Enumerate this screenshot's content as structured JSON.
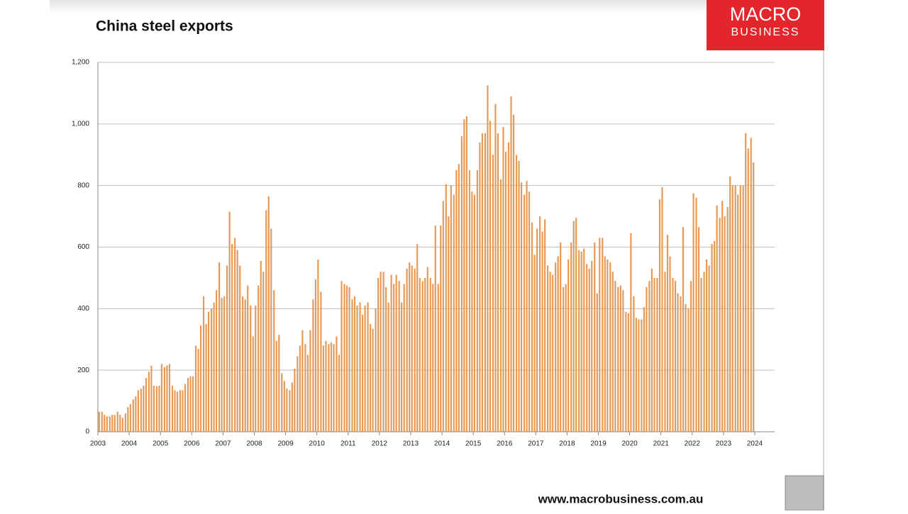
{
  "chart_data": {
    "type": "bar",
    "title": "China steel exports",
    "color": "#e69a58",
    "grid": true,
    "xlim": [
      2003,
      2024
    ],
    "xticks": [
      2003,
      2004,
      2005,
      2006,
      2007,
      2008,
      2009,
      2010,
      2011,
      2012,
      2013,
      2014,
      2015,
      2016,
      2017,
      2018,
      2019,
      2020,
      2021,
      2022,
      2023,
      2024
    ],
    "ylim": [
      0,
      1200
    ],
    "yticks": [
      0,
      200,
      400,
      600,
      800,
      {
        "value": 1000,
        "label": "1,000"
      },
      {
        "value": 1200,
        "label": "1,200"
      }
    ],
    "x": [
      2003.04,
      2003.13,
      2003.21,
      2003.29,
      2003.38,
      2003.46,
      2003.54,
      2003.63,
      2003.71,
      2003.79,
      2003.88,
      2003.96,
      2004.04,
      2004.13,
      2004.21,
      2004.29,
      2004.38,
      2004.46,
      2004.54,
      2004.63,
      2004.71,
      2004.79,
      2004.88,
      2004.96,
      2005.04,
      2005.13,
      2005.21,
      2005.29,
      2005.38,
      2005.46,
      2005.54,
      2005.63,
      2005.71,
      2005.79,
      2005.88,
      2005.96,
      2006.04,
      2006.13,
      2006.21,
      2006.29,
      2006.38,
      2006.46,
      2006.54,
      2006.63,
      2006.71,
      2006.79,
      2006.88,
      2006.96,
      2007.04,
      2007.13,
      2007.21,
      2007.29,
      2007.38,
      2007.46,
      2007.54,
      2007.63,
      2007.71,
      2007.79,
      2007.88,
      2007.96,
      2008.04,
      2008.13,
      2008.21,
      2008.29,
      2008.38,
      2008.46,
      2008.54,
      2008.63,
      2008.71,
      2008.79,
      2008.88,
      2008.96,
      2009.04,
      2009.13,
      2009.21,
      2009.29,
      2009.38,
      2009.46,
      2009.54,
      2009.63,
      2009.71,
      2009.79,
      2009.88,
      2009.96,
      2010.04,
      2010.13,
      2010.21,
      2010.29,
      2010.38,
      2010.46,
      2010.54,
      2010.63,
      2010.71,
      2010.79,
      2010.88,
      2010.96,
      2011.04,
      2011.13,
      2011.21,
      2011.29,
      2011.38,
      2011.46,
      2011.54,
      2011.63,
      2011.71,
      2011.79,
      2011.88,
      2011.96,
      2012.04,
      2012.13,
      2012.21,
      2012.29,
      2012.38,
      2012.46,
      2012.54,
      2012.63,
      2012.71,
      2012.79,
      2012.88,
      2012.96,
      2013.04,
      2013.13,
      2013.21,
      2013.29,
      2013.38,
      2013.46,
      2013.54,
      2013.63,
      2013.71,
      2013.79,
      2013.88,
      2013.96,
      2014.04,
      2014.13,
      2014.21,
      2014.29,
      2014.38,
      2014.46,
      2014.54,
      2014.63,
      2014.71,
      2014.79,
      2014.88,
      2014.96,
      2015.04,
      2015.13,
      2015.21,
      2015.29,
      2015.38,
      2015.46,
      2015.54,
      2015.63,
      2015.71,
      2015.79,
      2015.88,
      2015.96,
      2016.04,
      2016.13,
      2016.21,
      2016.29,
      2016.38,
      2016.46,
      2016.54,
      2016.63,
      2016.71,
      2016.79,
      2016.88,
      2016.96,
      2017.04,
      2017.13,
      2017.21,
      2017.29,
      2017.38,
      2017.46,
      2017.54,
      2017.63,
      2017.71,
      2017.79,
      2017.88,
      2017.96,
      2018.04,
      2018.13,
      2018.21,
      2018.29,
      2018.38,
      2018.46,
      2018.54,
      2018.63,
      2018.71,
      2018.79,
      2018.88,
      2018.96,
      2019.04,
      2019.13,
      2019.21,
      2019.29,
      2019.38,
      2019.46,
      2019.54,
      2019.63,
      2019.71,
      2019.79,
      2019.88,
      2019.96,
      2020.04,
      2020.13,
      2020.21,
      2020.29,
      2020.38,
      2020.46,
      2020.54,
      2020.63,
      2020.71,
      2020.79,
      2020.88,
      2020.96,
      2021.04,
      2021.13,
      2021.21,
      2021.29,
      2021.38,
      2021.46,
      2021.54,
      2021.63,
      2021.71,
      2021.79,
      2021.88,
      2021.96,
      2022.04,
      2022.13,
      2022.21,
      2022.29,
      2022.38,
      2022.46,
      2022.54,
      2022.63,
      2022.71,
      2022.79,
      2022.88,
      2022.96,
      2023.04,
      2023.13,
      2023.21,
      2023.29,
      2023.38,
      2023.46,
      2023.54,
      2023.63,
      2023.71,
      2023.79,
      2023.88,
      2023.96
    ],
    "values": [
      65,
      65,
      55,
      50,
      50,
      55,
      55,
      65,
      55,
      45,
      60,
      80,
      90,
      105,
      115,
      135,
      140,
      150,
      175,
      195,
      215,
      150,
      148,
      150,
      220,
      210,
      215,
      220,
      150,
      135,
      130,
      135,
      135,
      155,
      175,
      180,
      180,
      280,
      270,
      345,
      440,
      350,
      390,
      400,
      420,
      460,
      550,
      435,
      440,
      540,
      715,
      610,
      630,
      590,
      540,
      440,
      430,
      475,
      410,
      310,
      410,
      475,
      555,
      520,
      720,
      765,
      660,
      460,
      295,
      315,
      190,
      165,
      140,
      135,
      160,
      205,
      245,
      280,
      330,
      285,
      250,
      330,
      430,
      495,
      560,
      455,
      280,
      295,
      285,
      290,
      285,
      310,
      250,
      490,
      480,
      475,
      470,
      430,
      440,
      410,
      420,
      380,
      410,
      420,
      350,
      335,
      400,
      500,
      520,
      520,
      470,
      420,
      510,
      480,
      510,
      490,
      420,
      480,
      530,
      550,
      540,
      530,
      610,
      500,
      490,
      500,
      535,
      500,
      480,
      670,
      480,
      670,
      750,
      805,
      700,
      800,
      770,
      850,
      870,
      960,
      1015,
      1025,
      850,
      780,
      770,
      850,
      940,
      970,
      970,
      1125,
      1010,
      900,
      1065,
      970,
      820,
      990,
      910,
      940,
      1090,
      1030,
      900,
      880,
      810,
      770,
      815,
      780,
      680,
      575,
      660,
      700,
      650,
      690,
      540,
      520,
      510,
      550,
      570,
      615,
      470,
      480,
      560,
      615,
      685,
      695,
      590,
      585,
      595,
      545,
      530,
      555,
      615,
      450,
      630,
      630,
      570,
      560,
      550,
      520,
      490,
      470,
      475,
      460,
      390,
      385,
      645,
      440,
      370,
      365,
      365,
      405,
      470,
      490,
      530,
      500,
      500,
      755,
      795,
      520,
      640,
      570,
      500,
      490,
      450,
      440,
      665,
      415,
      400,
      490,
      775,
      760,
      665,
      500,
      520,
      560,
      540,
      610,
      620,
      735,
      695,
      750,
      700,
      730,
      830,
      800,
      800,
      770,
      800,
      800,
      970,
      920,
      955,
      875
    ]
  },
  "logo": {
    "line1": "MACRO",
    "line2": "BUSINESS"
  },
  "footer_url": "www.macrobusiness.com.au"
}
